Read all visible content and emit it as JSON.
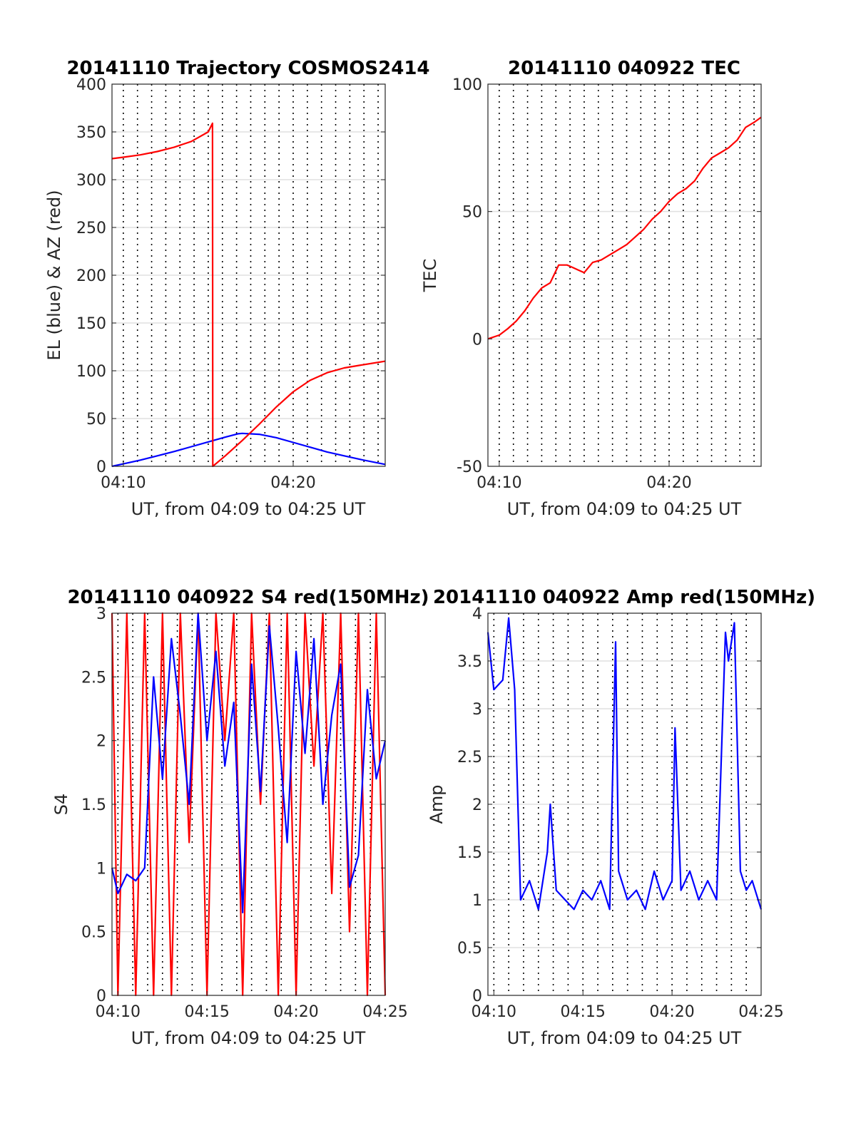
{
  "chart_data": [
    {
      "type": "line",
      "title": "20141110 Trajectory COSMOS2414",
      "xlabel": "UT, from 04:09 to 04:25 UT",
      "ylabel": "EL (blue) & AZ (red)",
      "xlim": [
        "04:09:20",
        "04:25:25"
      ],
      "ylim": [
        0,
        400
      ],
      "xticks": [
        "04:10",
        "04:20"
      ],
      "yticks": [
        0,
        50,
        100,
        150,
        200,
        250,
        300,
        350,
        400
      ],
      "grid": "horizontal solid light gray, vertical dotted every 50 s",
      "series": [
        {
          "name": "EL",
          "color": "#0000ff",
          "x": [
            "04:09:20",
            "04:10:00",
            "04:11:00",
            "04:12:00",
            "04:13:00",
            "04:14:00",
            "04:15:00",
            "04:16:00",
            "04:16:45",
            "04:17:00",
            "04:18:00",
            "04:19:00",
            "04:20:00",
            "04:21:00",
            "04:22:00",
            "04:23:00",
            "04:24:00",
            "04:25:25"
          ],
          "y": [
            0,
            2.5,
            6.5,
            11,
            15.5,
            20.5,
            25.5,
            30.5,
            34,
            34.5,
            33.5,
            30,
            25,
            20,
            15,
            11,
            7,
            2
          ]
        },
        {
          "name": "AZ",
          "color": "#ff0000",
          "x": [
            "04:09:20",
            "04:10:00",
            "04:11:00",
            "04:12:00",
            "04:13:00",
            "04:14:00",
            "04:15:00",
            "04:15:15",
            "04:15:16",
            "04:16:00",
            "04:17:00",
            "04:18:00",
            "04:19:00",
            "04:20:00",
            "04:21:00",
            "04:22:00",
            "04:23:00",
            "04:24:00",
            "04:25:25"
          ],
          "y": [
            322,
            323.5,
            326,
            329.5,
            334,
            340,
            350,
            359,
            0,
            11,
            27,
            44,
            62,
            78,
            90,
            98,
            103,
            106,
            110
          ]
        }
      ]
    },
    {
      "type": "line",
      "title": "20141110 040922 TEC",
      "xlabel": "UT, from 04:09 to 04:25 UT",
      "ylabel": "TEC",
      "xlim": [
        "04:09:20",
        "04:25:25"
      ],
      "ylim": [
        -50,
        100
      ],
      "xticks": [
        "04:10",
        "04:20"
      ],
      "yticks": [
        -50,
        0,
        50,
        100
      ],
      "grid": "horizontal solid light gray, vertical dotted every 50 s",
      "series": [
        {
          "name": "TEC",
          "color": "#ff0000",
          "x": [
            "04:09:20",
            "04:10:00",
            "04:10:30",
            "04:11:00",
            "04:11:30",
            "04:12:00",
            "04:12:30",
            "04:13:00",
            "04:13:30",
            "04:14:00",
            "04:14:20",
            "04:14:40",
            "04:15:00",
            "04:15:30",
            "04:16:00",
            "04:16:30",
            "04:17:00",
            "04:17:30",
            "04:18:00",
            "04:18:30",
            "04:19:00",
            "04:19:30",
            "04:20:00",
            "04:20:30",
            "04:21:00",
            "04:21:30",
            "04:22:00",
            "04:22:30",
            "04:23:00",
            "04:23:30",
            "04:24:00",
            "04:24:30",
            "04:25:00",
            "04:25:25"
          ],
          "y": [
            0,
            1.5,
            4,
            7,
            11,
            16,
            20,
            22,
            29,
            29,
            28,
            27,
            26,
            30,
            31,
            33,
            35,
            37,
            40,
            43,
            47,
            50,
            54,
            57,
            59,
            62,
            67,
            71,
            73,
            75,
            78,
            83,
            85,
            87
          ]
        }
      ]
    },
    {
      "type": "line",
      "title": "20141110 040922 S4 red(150MHz)",
      "xlabel": "UT, from 04:09 to 04:25 UT",
      "ylabel": "S4",
      "xlim": [
        "04:09:40",
        "04:25:00"
      ],
      "ylim": [
        0,
        3
      ],
      "xticks": [
        "04:10",
        "04:15",
        "04:20",
        "04:25"
      ],
      "yticks": [
        0,
        0.5,
        1,
        1.5,
        2,
        2.5,
        3
      ],
      "grid": "horizontal solid light gray, vertical dotted every 50 s",
      "series": [
        {
          "name": "S4 red",
          "color": "#ff0000",
          "x": [
            "04:09:40",
            "04:10:00",
            "04:10:30",
            "04:11:00",
            "04:11:30",
            "04:12:00",
            "04:12:30",
            "04:13:00",
            "04:13:30",
            "04:14:00",
            "04:14:30",
            "04:15:00",
            "04:15:30",
            "04:16:00",
            "04:16:30",
            "04:17:00",
            "04:17:30",
            "04:18:00",
            "04:18:30",
            "04:19:00",
            "04:19:30",
            "04:20:00",
            "04:20:30",
            "04:21:00",
            "04:21:30",
            "04:22:00",
            "04:22:30",
            "04:23:00",
            "04:23:30",
            "04:24:00",
            "04:24:30",
            "04:25:00"
          ],
          "y": [
            3,
            0,
            3,
            0,
            3,
            0,
            3,
            0,
            3,
            1.2,
            3,
            0,
            3,
            2,
            3,
            0,
            3,
            1.5,
            3,
            0,
            3,
            0,
            3,
            1.8,
            3,
            0.8,
            3,
            0.5,
            3,
            0,
            3,
            0
          ]
        },
        {
          "name": "S4 blue",
          "color": "#0000ff",
          "x": [
            "04:09:40",
            "04:10:00",
            "04:10:30",
            "04:11:00",
            "04:11:30",
            "04:12:00",
            "04:12:30",
            "04:13:00",
            "04:13:30",
            "04:14:00",
            "04:14:30",
            "04:15:00",
            "04:15:30",
            "04:16:00",
            "04:16:30",
            "04:17:00",
            "04:17:30",
            "04:18:00",
            "04:18:30",
            "04:19:00",
            "04:19:30",
            "04:20:00",
            "04:20:30",
            "04:21:00",
            "04:21:30",
            "04:22:00",
            "04:22:30",
            "04:23:00",
            "04:23:30",
            "04:24:00",
            "04:24:30",
            "04:25:00"
          ],
          "y": [
            1.0,
            0.8,
            0.95,
            0.9,
            1.0,
            2.5,
            1.7,
            2.8,
            2.2,
            1.5,
            3,
            2.0,
            2.7,
            1.8,
            2.3,
            0.65,
            2.6,
            1.6,
            2.9,
            2.1,
            1.2,
            2.7,
            1.9,
            2.8,
            1.5,
            2.2,
            2.6,
            0.85,
            1.1,
            2.4,
            1.7,
            2.0
          ]
        }
      ]
    },
    {
      "type": "line",
      "title": "20141110 040922 Amp red(150MHz)",
      "xlabel": "UT, from 04:09 to 04:25 UT",
      "ylabel": "Amp",
      "xlim": [
        "04:09:40",
        "04:25:00"
      ],
      "ylim": [
        0,
        4
      ],
      "xticks": [
        "04:10",
        "04:15",
        "04:20",
        "04:25"
      ],
      "yticks": [
        0,
        0.5,
        1,
        1.5,
        2,
        2.5,
        3,
        3.5,
        4
      ],
      "grid": "horizontal solid light gray, vertical dotted every 50 s",
      "series": [
        {
          "name": "Amp",
          "color": "#0000ff",
          "x": [
            "04:09:40",
            "04:10:00",
            "04:10:30",
            "04:10:50",
            "04:11:10",
            "04:11:30",
            "04:12:00",
            "04:12:30",
            "04:13:00",
            "04:13:10",
            "04:13:30",
            "04:14:00",
            "04:14:30",
            "04:15:00",
            "04:15:30",
            "04:16:00",
            "04:16:30",
            "04:16:50",
            "04:17:00",
            "04:17:30",
            "04:18:00",
            "04:18:30",
            "04:19:00",
            "04:19:30",
            "04:20:00",
            "04:20:10",
            "04:20:30",
            "04:21:00",
            "04:21:30",
            "04:22:00",
            "04:22:30",
            "04:23:00",
            "04:23:10",
            "04:23:30",
            "04:23:50",
            "04:24:10",
            "04:24:30",
            "04:25:00"
          ],
          "y": [
            3.8,
            3.2,
            3.3,
            3.95,
            3.2,
            1.0,
            1.2,
            0.9,
            1.5,
            2.0,
            1.1,
            1.0,
            0.9,
            1.1,
            1.0,
            1.2,
            0.9,
            3.7,
            1.3,
            1.0,
            1.1,
            0.9,
            1.3,
            1.0,
            1.2,
            2.8,
            1.1,
            1.3,
            1.0,
            1.2,
            1.0,
            3.8,
            3.5,
            3.9,
            1.3,
            1.1,
            1.2,
            0.9
          ]
        }
      ]
    }
  ]
}
